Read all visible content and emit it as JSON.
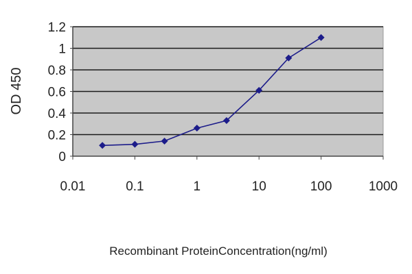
{
  "chart_data": {
    "type": "scatter",
    "title": "",
    "xlabel": "Recombinant ProteinConcentration(ng/ml)",
    "ylabel": "OD 450",
    "x_scale": "log",
    "xlim": [
      0.01,
      1000
    ],
    "ylim": [
      0,
      1.2
    ],
    "x_ticks": [
      "0.01",
      "0.1",
      "1",
      "10",
      "100",
      "1000"
    ],
    "y_ticks": [
      "0",
      "0.2",
      "0.4",
      "0.6",
      "0.8",
      "1",
      "1.2"
    ],
    "grid": "horizontal",
    "legend": "none",
    "series": [
      {
        "x": [
          0.03,
          0.1,
          0.3,
          1,
          3,
          10,
          30,
          100
        ],
        "y": [
          0.1,
          0.11,
          0.14,
          0.26,
          0.33,
          0.61,
          0.91,
          1.1
        ],
        "marker": "diamond",
        "color": "#1c1c8a"
      }
    ],
    "plot_background": "#c8c8c8"
  }
}
